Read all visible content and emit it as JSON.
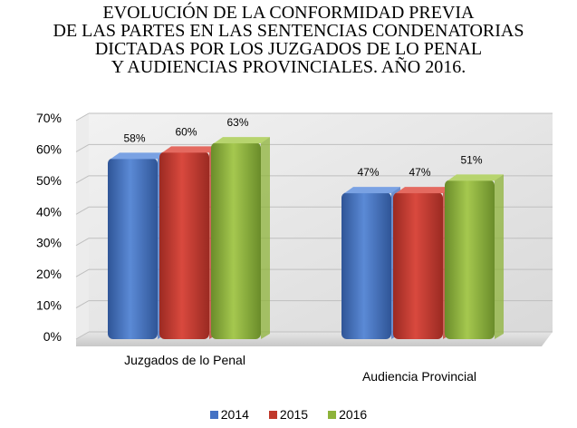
{
  "chart_data": {
    "type": "bar",
    "title_lines": [
      "EVOLUCIÓN DE LA CONFORMIDAD PREVIA",
      "DE LAS PARTES EN LAS SENTENCIAS CONDENATORIAS",
      "DICTADAS POR LOS JUZGADOS DE LO PENAL",
      "Y AUDIENCIAS PROVINCIALES. AÑO 2016."
    ],
    "categories": [
      "Juzgados de lo Penal",
      "Audiencia Provincial"
    ],
    "series": [
      {
        "name": "2014",
        "values": [
          58,
          47
        ],
        "labels": [
          "58%",
          "47%"
        ],
        "color": "#4472C4"
      },
      {
        "name": "2015",
        "values": [
          60,
          47
        ],
        "labels": [
          "60%",
          "47%"
        ],
        "color": "#C0392B"
      },
      {
        "name": "2016",
        "values": [
          63,
          51
        ],
        "labels": [
          "63%",
          "51%"
        ],
        "color": "#8DB33A"
      }
    ],
    "yticks": [
      "0%",
      "10%",
      "20%",
      "30%",
      "40%",
      "50%",
      "60%",
      "70%"
    ],
    "ylim": [
      0,
      70
    ],
    "grid": true,
    "legend_position": "bottom"
  }
}
